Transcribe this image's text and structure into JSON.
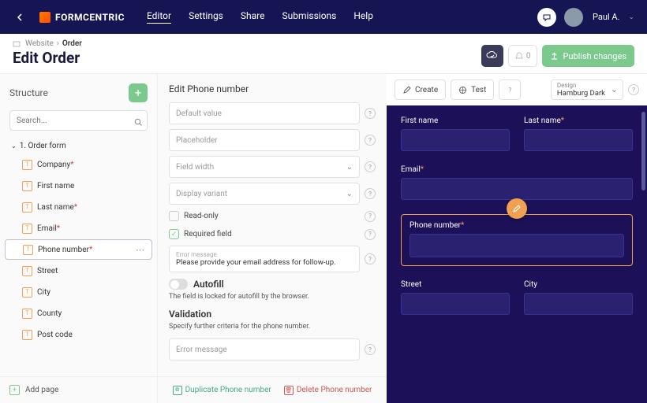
{
  "brand": "FORMCENTRIC",
  "nav": {
    "items": [
      "Editor",
      "Settings",
      "Share",
      "Submissions",
      "Help"
    ],
    "active": 0
  },
  "user": {
    "name": "Paul A."
  },
  "breadcrumb": {
    "root": "Website",
    "page": "Order"
  },
  "pageTitle": "Edit Order",
  "notificationCount": "0",
  "publishLabel": "Publish changes",
  "structure": {
    "title": "Structure",
    "searchPlaceholder": "Search...",
    "root": "1. Order form",
    "items": [
      {
        "label": "Company",
        "required": true,
        "selected": false
      },
      {
        "label": "First name",
        "required": false,
        "selected": false
      },
      {
        "label": "Last name",
        "required": true,
        "selected": false
      },
      {
        "label": "Email",
        "required": true,
        "selected": false
      },
      {
        "label": "Phone number",
        "required": true,
        "selected": true
      },
      {
        "label": "Street",
        "required": false,
        "selected": false
      },
      {
        "label": "City",
        "required": false,
        "selected": false
      },
      {
        "label": "County",
        "required": false,
        "selected": false
      },
      {
        "label": "Post code",
        "required": false,
        "selected": false
      }
    ],
    "addPage": "Add page"
  },
  "editor": {
    "title": "Edit Phone number",
    "fields": {
      "defaultValue": "Default value",
      "placeholder": "Placeholder",
      "fieldWidth": "Field width",
      "displayVariant": "Display variant",
      "readOnly": "Read-only",
      "requiredField": "Required field",
      "errorLabel": "Error message",
      "errorValue": "Please provide your email address for follow-up.",
      "autofill": "Autofill",
      "autofillHint": "The field is locked for autofill by the browser.",
      "validation": "Validation",
      "validationHint": "Specify further criteria for the phone number.",
      "errorMessage2": "Error message"
    },
    "footer": {
      "duplicate": "Duplicate Phone number",
      "delete": "Delete Phone number"
    }
  },
  "preview": {
    "toolbar": {
      "create": "Create",
      "test": "Test",
      "designLabel": "Design",
      "designValue": "Hamburg Dark"
    },
    "fields": {
      "firstName": "First name",
      "lastName": "Last name",
      "email": "Email",
      "phoneNumber": "Phone number",
      "street": "Street",
      "city": "City"
    }
  },
  "colors": {
    "navBg": "#151554",
    "accent": "#7cc98e",
    "previewBg": "#1c1158",
    "iconBorder": "#f0a050",
    "required": "#d04040"
  }
}
